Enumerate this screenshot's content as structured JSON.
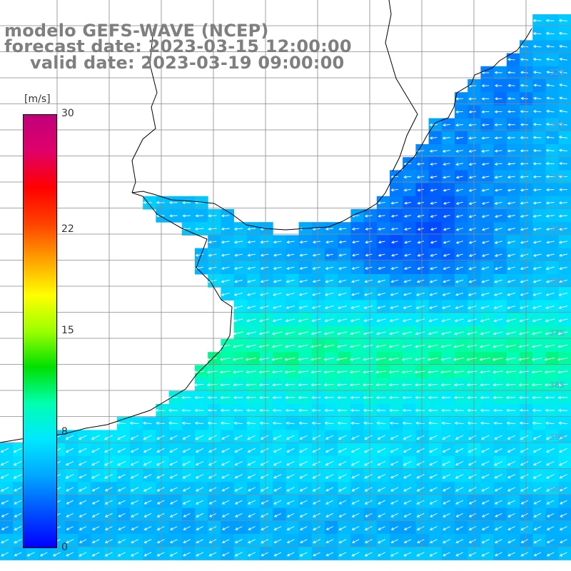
{
  "titles": {
    "model": "modelo GEFS-WAVE (NCEP)",
    "forecast": "forecast date: 2023-03-15 12:00:00",
    "valid": "valid date: 2023-03-19 09:00:00"
  },
  "colorbar": {
    "units": "[m/s]",
    "ticks": [
      {
        "value": 30,
        "label": "30"
      },
      {
        "value": 22,
        "label": "22"
      },
      {
        "value": 15,
        "label": "15"
      },
      {
        "value": 8,
        "label": "8"
      },
      {
        "value": 0,
        "label": "0"
      }
    ],
    "min": 0,
    "max": 30,
    "colors": [
      "#0000ff",
      "#0050ff",
      "#00a8ff",
      "#00e8ff",
      "#00ffb0",
      "#00e000",
      "#9cff00",
      "#ffff00",
      "#ffa000",
      "#ff4000",
      "#ff0000",
      "#e0006a",
      "#c0007a"
    ]
  },
  "lat_labels": [
    "32S",
    "33S",
    "34S",
    "35S",
    "36S",
    "37S",
    "38S",
    "39S",
    "40S"
  ],
  "colors": {
    "ocean_weak": "#0a5cff",
    "ocean_mid": "#0aa8ff",
    "ocean_strong": "#00e8c0",
    "land": "#ffffff",
    "grid": "#888888",
    "coast": "#000000",
    "arrows": "#ffffff"
  }
}
